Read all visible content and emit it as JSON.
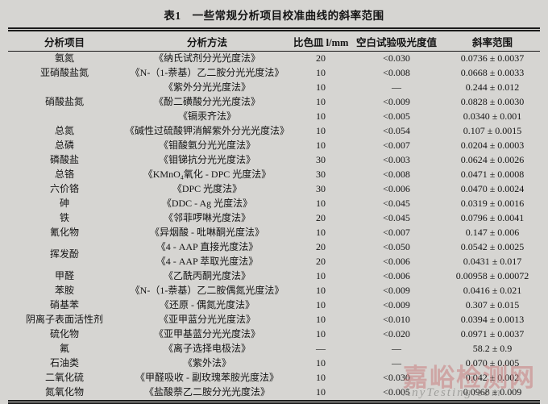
{
  "title": "表1　一些常规分析项目校准曲线的斜率范围",
  "table": {
    "columns": [
      "分析项目",
      "分析方法",
      "比色皿 l/mm",
      "空白试验吸光度值",
      "斜率范围"
    ],
    "groups": [
      {
        "item": "氨氮",
        "rows": [
          {
            "method": "《纳氏试剂分光光度法》",
            "cuvette": "20",
            "blank": "<0.030",
            "slope": "0.0736 ± 0.0037"
          }
        ]
      },
      {
        "item": "亚硝酸盐氮",
        "rows": [
          {
            "method": "《N-（1-萘基）乙二胺分光光度法》",
            "cuvette": "10",
            "blank": "<0.008",
            "slope": "0.0668 ± 0.0033"
          }
        ]
      },
      {
        "item": "硝酸盐氮",
        "rows": [
          {
            "method": "《紫外分光光度法》",
            "cuvette": "10",
            "blank": "—",
            "slope": "0.244 ± 0.012"
          },
          {
            "method": "《酚二磺酸分光光度法》",
            "cuvette": "10",
            "blank": "<0.009",
            "slope": "0.0828 ± 0.0030"
          },
          {
            "method": "《镉汞齐法》",
            "cuvette": "10",
            "blank": "<0.005",
            "slope": "0.0340 ± 0.001"
          }
        ]
      },
      {
        "item": "总氮",
        "rows": [
          {
            "method": "《碱性过硫酸钾消解紫外分光光度法》",
            "cuvette": "10",
            "blank": "<0.054",
            "slope": "0.107 ± 0.0015"
          }
        ]
      },
      {
        "item": "总磷",
        "rows": [
          {
            "method": "《钼酸氨分光光度法》",
            "cuvette": "10",
            "blank": "<0.007",
            "slope": "0.0204 ± 0.0003"
          }
        ]
      },
      {
        "item": "磷酸盐",
        "rows": [
          {
            "method": "《钼锑抗分光光度法》",
            "cuvette": "30",
            "blank": "<0.003",
            "slope": "0.0624 ± 0.0026"
          }
        ]
      },
      {
        "item": "总铬",
        "rows": [
          {
            "method": "《KMnO₄氧化 - DPC 光度法》",
            "cuvette": "30",
            "blank": "<0.008",
            "slope": "0.0471 ± 0.0008"
          }
        ]
      },
      {
        "item": "六价铬",
        "rows": [
          {
            "method": "《DPC 光度法》",
            "cuvette": "30",
            "blank": "<0.006",
            "slope": "0.0470 ± 0.0024"
          }
        ]
      },
      {
        "item": "砷",
        "rows": [
          {
            "method": "《DDC - Ag 光度法》",
            "cuvette": "10",
            "blank": "<0.045",
            "slope": "0.0319 ± 0.0016"
          }
        ]
      },
      {
        "item": "铁",
        "rows": [
          {
            "method": "《邻菲啰啉光度法》",
            "cuvette": "20",
            "blank": "<0.045",
            "slope": "0.0796 ± 0.0041"
          }
        ]
      },
      {
        "item": "氰化物",
        "rows": [
          {
            "method": "《异烟酸 - 吡啉酮光度法》",
            "cuvette": "10",
            "blank": "<0.007",
            "slope": "0.147 ± 0.006"
          }
        ]
      },
      {
        "item": "挥发酚",
        "rows": [
          {
            "method": "《4 - AAP 直接光度法》",
            "cuvette": "20",
            "blank": "<0.050",
            "slope": "0.0542 ± 0.0025"
          },
          {
            "method": "《4 - AAP 萃取光度法》",
            "cuvette": "20",
            "blank": "<0.006",
            "slope": "0.0431 ± 0.017"
          }
        ]
      },
      {
        "item": "甲醛",
        "rows": [
          {
            "method": "《乙酰丙酮光度法》",
            "cuvette": "10",
            "blank": "<0.006",
            "slope": "0.00958 ± 0.00072"
          }
        ]
      },
      {
        "item": "苯胺",
        "rows": [
          {
            "method": "《N-（1-萘基）乙二胺偶氮光度法》",
            "cuvette": "10",
            "blank": "<0.009",
            "slope": "0.0416 ± 0.021"
          }
        ]
      },
      {
        "item": "硝基苯",
        "rows": [
          {
            "method": "《还原 - 偶氮光度法》",
            "cuvette": "10",
            "blank": "<0.009",
            "slope": "0.307 ± 0.015"
          }
        ]
      },
      {
        "item": "阴离子表面活性剂",
        "rows": [
          {
            "method": "《亚甲蓝分光光度法》",
            "cuvette": "10",
            "blank": "<0.010",
            "slope": "0.0394 ± 0.0013"
          }
        ]
      },
      {
        "item": "硫化物",
        "rows": [
          {
            "method": "《亚甲基蓝分光光度法》",
            "cuvette": "10",
            "blank": "<0.020",
            "slope": "0.0971 ± 0.0037"
          }
        ]
      },
      {
        "item": "氟",
        "rows": [
          {
            "method": "《离子选择电极法》",
            "cuvette": "—",
            "blank": "—",
            "slope": "58.2 ± 0.9"
          }
        ]
      },
      {
        "item": "石油类",
        "rows": [
          {
            "method": "《紫外法》",
            "cuvette": "10",
            "blank": "—",
            "slope": "0.070 ± 0.005"
          }
        ]
      },
      {
        "item": "二氧化硫",
        "rows": [
          {
            "method": "《甲醛吸收 - 副玫瑰苯胺光度法》",
            "cuvette": "10",
            "blank": "<0.030",
            "slope": "0.042 ± 0.002"
          }
        ]
      },
      {
        "item": "氮氧化物",
        "rows": [
          {
            "method": "《盐酸萘乙二胺分光光度法》",
            "cuvette": "10",
            "blank": "<0.005",
            "slope": "0.0968 ± 0.009"
          }
        ]
      }
    ]
  },
  "watermark": {
    "text_cn": "嘉峪检测网",
    "text_en": "AnyTesting.com",
    "color_cn": "#c97f7f",
    "color_en": "#8d8d8a"
  }
}
